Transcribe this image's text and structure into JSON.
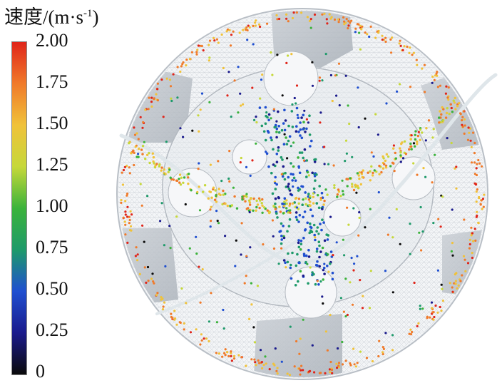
{
  "legend": {
    "title_main": "速度/(m·s",
    "title_sup": "-1",
    "title_close": ")",
    "ticks": [
      "2.00",
      "1.75",
      "1.50",
      "1.25",
      "1.00",
      "0.75",
      "0.50",
      "0.25",
      "0"
    ],
    "colormap": [
      "#0a0a0a",
      "#1a1a8c",
      "#1f4fd0",
      "#1e9a6a",
      "#3bb33b",
      "#c6d83a",
      "#f0c23a",
      "#f07a2a",
      "#e0251a"
    ]
  }
}
